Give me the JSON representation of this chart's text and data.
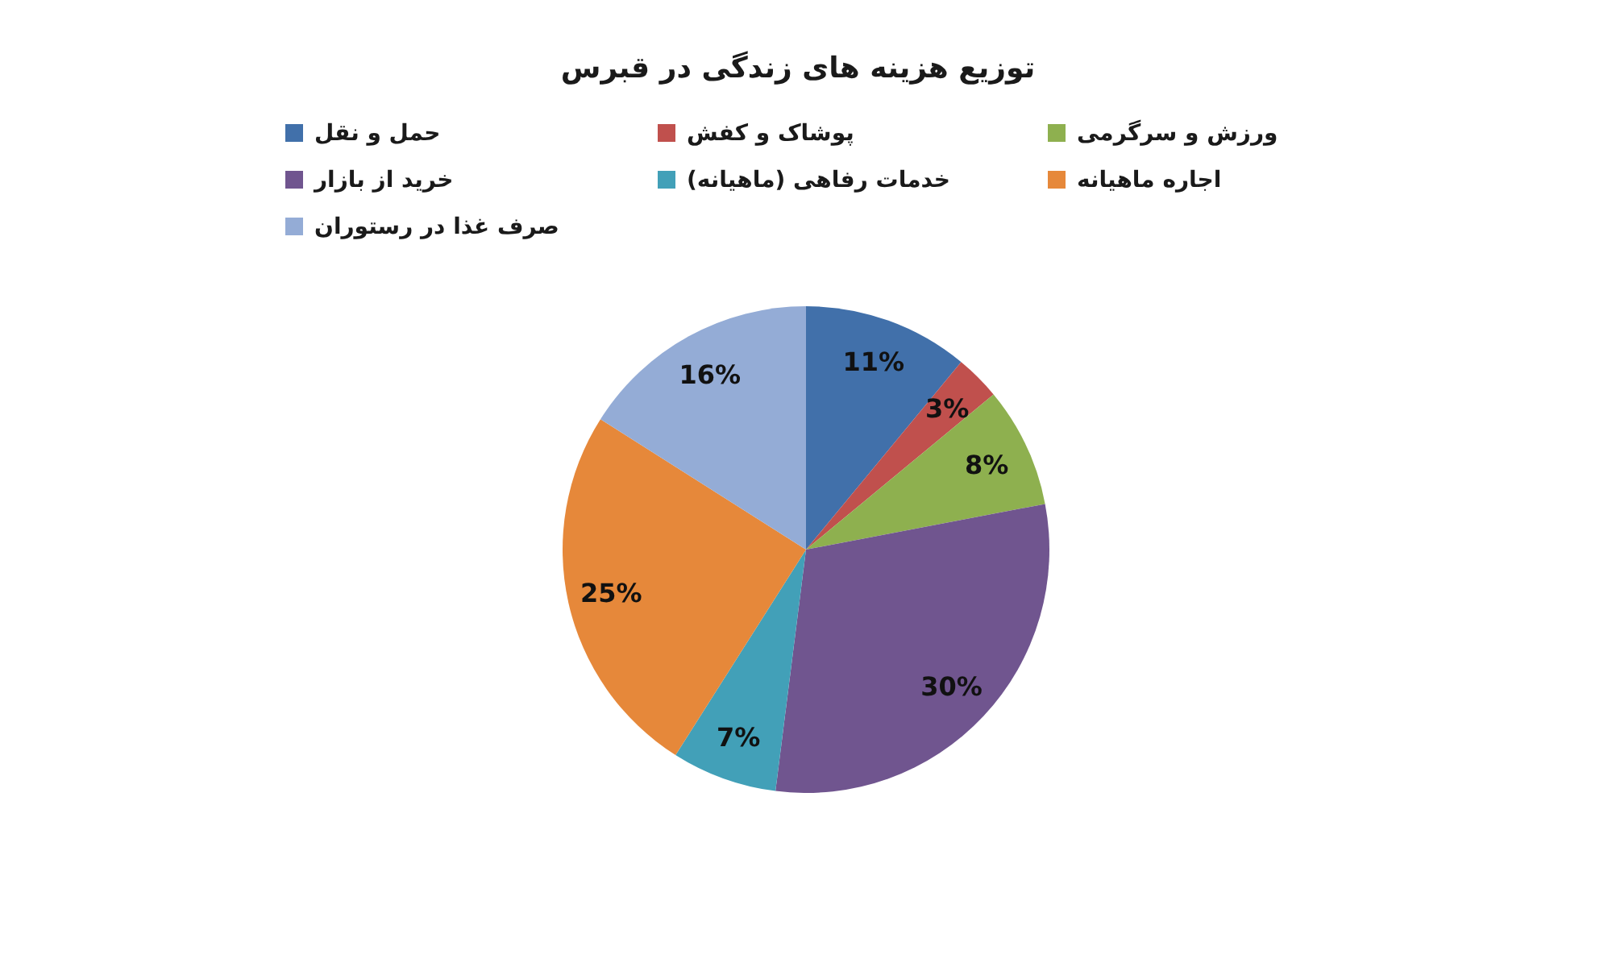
{
  "chart_data": {
    "type": "pie",
    "title": "توزیع هزینه های زندگی در قبرس",
    "categories": [
      "حمل و نقل",
      "پوشاک و کفش",
      "ورزش و سرگرمی",
      "خرید از بازار",
      "خدمات رفاهی (ماهیانه)",
      "اجاره ماهیانه",
      "صرف غذا در رستوران"
    ],
    "values": [
      11,
      3,
      8,
      30,
      7,
      25,
      16
    ],
    "colors": [
      "#4170aa",
      "#c0504d",
      "#8eb04f",
      "#70558f",
      "#42a0b8",
      "#e6883a",
      "#94acd6"
    ],
    "value_labels": [
      "11%",
      "3%",
      "8%",
      "30%",
      "7%",
      "25%",
      "16%"
    ],
    "legend": "top"
  }
}
